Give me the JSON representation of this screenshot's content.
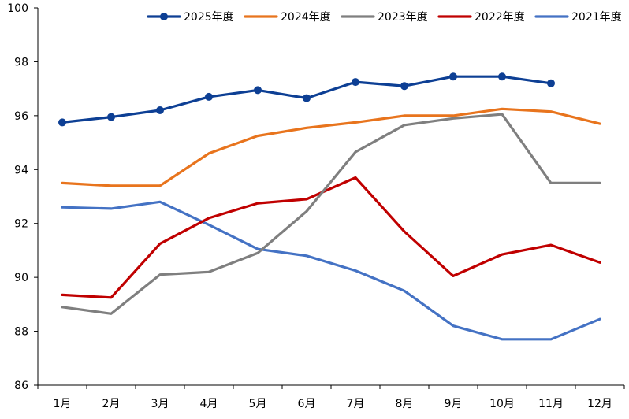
{
  "chart_data": {
    "type": "line",
    "title": "",
    "xlabel": "",
    "ylabel": "",
    "ylim": [
      86,
      100
    ],
    "yticks": [
      "86",
      "88",
      "90",
      "92",
      "94",
      "96",
      "98",
      "100"
    ],
    "categories": [
      "1月",
      "2月",
      "3月",
      "4月",
      "5月",
      "6月",
      "7月",
      "8月",
      "9月",
      "10月",
      "11月",
      "12月"
    ],
    "legend_position": "top",
    "series": [
      {
        "name": "2025年度",
        "color": "#0d3f94",
        "markers": true,
        "values": [
          95.75,
          95.95,
          96.2,
          96.7,
          96.95,
          96.65,
          97.25,
          97.1,
          97.45,
          97.45,
          97.2,
          null
        ]
      },
      {
        "name": "2024年度",
        "color": "#e8741d",
        "markers": false,
        "values": [
          93.5,
          93.4,
          93.4,
          94.6,
          95.25,
          95.55,
          95.75,
          96.0,
          96.0,
          96.25,
          96.15,
          95.7
        ]
      },
      {
        "name": "2023年度",
        "color": "#7f7f7f",
        "markers": false,
        "values": [
          88.9,
          88.65,
          90.1,
          90.2,
          90.9,
          92.45,
          94.65,
          95.65,
          95.9,
          96.05,
          93.5,
          93.5
        ]
      },
      {
        "name": "2022年度",
        "color": "#c00000",
        "markers": false,
        "values": [
          89.35,
          89.25,
          91.25,
          92.2,
          92.75,
          92.9,
          93.7,
          91.7,
          90.05,
          90.85,
          91.2,
          90.55
        ]
      },
      {
        "name": "2021年度",
        "color": "#4472c4",
        "markers": false,
        "values": [
          92.6,
          92.55,
          92.8,
          91.95,
          91.05,
          90.8,
          90.25,
          89.5,
          88.2,
          87.7,
          87.7,
          88.45
        ]
      }
    ]
  }
}
